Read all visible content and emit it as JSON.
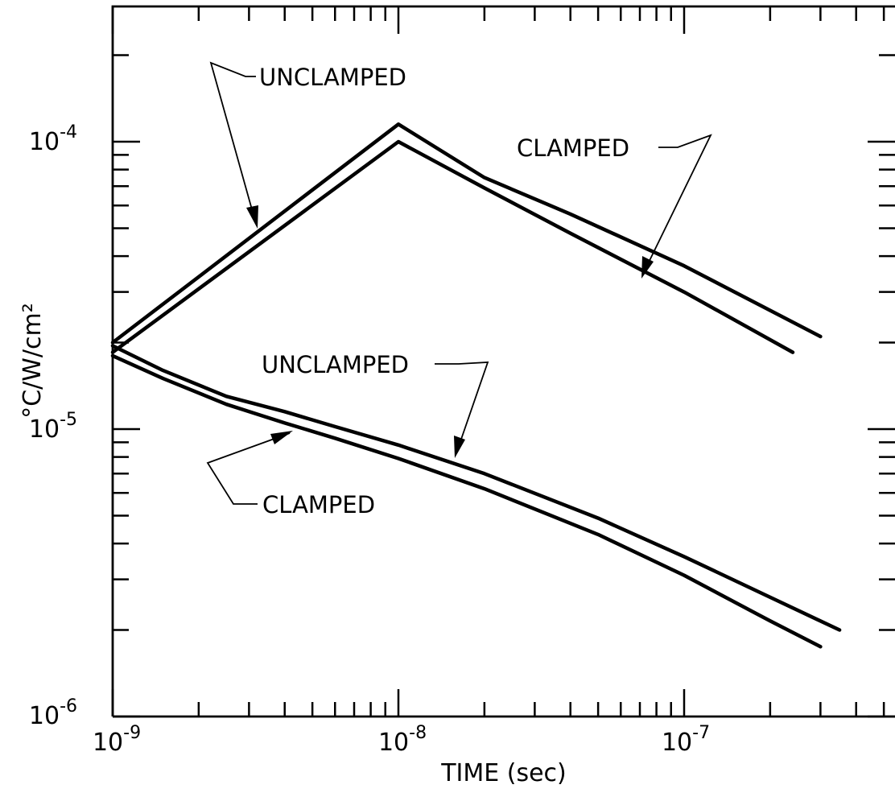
{
  "chart_data": {
    "type": "line",
    "x_scale": "log",
    "y_scale": "log",
    "xlim": [
      1e-09,
      8e-07
    ],
    "ylim": [
      1e-06,
      0.0003
    ],
    "xlabel": "TIME (sec)",
    "ylabel": "°C/W/cm²",
    "x_ticks": [
      {
        "value": 1e-09,
        "base": "10",
        "exp": "-9"
      },
      {
        "value": 1e-08,
        "base": "10",
        "exp": "-8"
      },
      {
        "value": 1e-07,
        "base": "10",
        "exp": "-7"
      }
    ],
    "y_ticks": [
      {
        "value": 1e-06,
        "base": "10",
        "exp": "-6"
      },
      {
        "value": 1e-05,
        "base": "10",
        "exp": "-5"
      },
      {
        "value": 0.0001,
        "base": "10",
        "exp": "-4"
      }
    ],
    "grid": false,
    "legend": "none",
    "series": [
      {
        "group": "upper",
        "x": [
          1e-09,
          1e-08,
          2e-08,
          4e-08,
          1e-07,
          3e-07
        ],
        "y": [
          2e-05,
          0.000115,
          7.5e-05,
          5.6e-05,
          3.7e-05,
          2.1e-05
        ]
      },
      {
        "group": "upper",
        "x": [
          1e-09,
          1e-08,
          2e-08,
          4e-08,
          1e-07,
          2.4e-07
        ],
        "y": [
          1.85e-05,
          0.0001,
          6.9e-05,
          4.8e-05,
          3e-05,
          1.85e-05
        ]
      },
      {
        "group": "lower",
        "x": [
          1e-09,
          1.5e-09,
          2.5e-09,
          4e-09,
          6e-09,
          1e-08,
          2e-08,
          5e-08,
          1e-07,
          2e-07,
          3.5e-07
        ],
        "y": [
          1.95e-05,
          1.6e-05,
          1.3e-05,
          1.15e-05,
          1.02e-05,
          8.8e-06,
          7e-06,
          4.9e-06,
          3.6e-06,
          2.6e-06,
          2e-06
        ]
      },
      {
        "group": "lower",
        "x": [
          1e-09,
          1.5e-09,
          2.5e-09,
          4e-09,
          6e-09,
          1e-08,
          2e-08,
          5e-08,
          1e-07,
          2e-07,
          3e-07
        ],
        "y": [
          1.8e-05,
          1.5e-05,
          1.22e-05,
          1.05e-05,
          9.3e-06,
          7.9e-06,
          6.2e-06,
          4.3e-06,
          3.1e-06,
          2.15e-06,
          1.75e-06
        ]
      }
    ],
    "annotations": [
      {
        "text": "UNCLAMPED",
        "for_group": "upper"
      },
      {
        "text": "CLAMPED",
        "for_group": "upper"
      },
      {
        "text": "UNCLAMPED",
        "for_group": "lower"
      },
      {
        "text": "CLAMPED",
        "for_group": "lower"
      }
    ]
  }
}
